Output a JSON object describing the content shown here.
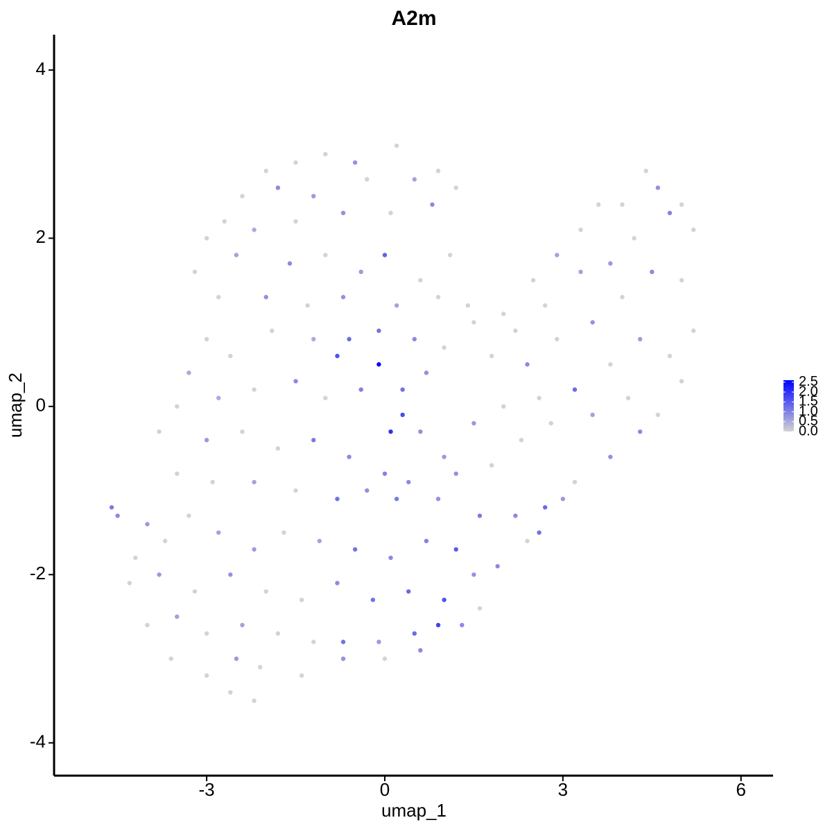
{
  "chart_data": {
    "type": "scatter",
    "title": "A2m",
    "x_label": "umap_1",
    "y_label": "umap_2",
    "xlim": [
      -5.57,
      6.54
    ],
    "ylim": [
      -4.39,
      4.42
    ],
    "xticks": [
      -3,
      0,
      3,
      6
    ],
    "yticks": [
      -4,
      -2,
      0,
      2,
      4
    ],
    "color_low": "#d3d3d3",
    "color_high": "#0000ff",
    "colorlim": [
      0,
      2.6
    ],
    "colorticks": [
      {
        "value": 0,
        "label": "0.0"
      },
      0.5,
      {
        "value": 1,
        "label": "1.0"
      },
      1.5,
      {
        "value": 2,
        "label": "2.0"
      },
      2.5
    ],
    "x": [
      -1.5,
      -1.0,
      -0.5,
      0.2,
      -2.0,
      -2.4,
      -1.8,
      -1.2,
      -0.3,
      0.5,
      0.9,
      1.2,
      -2.7,
      -2.2,
      -1.5,
      -0.7,
      0.1,
      0.8,
      -3.0,
      -2.5,
      -1.6,
      -1.0,
      -0.4,
      0.0,
      0.6,
      1.1,
      -3.2,
      -2.8,
      -2.0,
      -1.3,
      -0.7,
      0.2,
      0.9,
      1.4,
      -3.0,
      -3.3,
      -2.6,
      -1.9,
      -1.2,
      -0.6,
      -0.1,
      0.5,
      1.0,
      -0.8,
      -0.1,
      0.3,
      -0.4,
      0.7,
      -3.5,
      -2.8,
      -2.2,
      -1.5,
      -1.0,
      0.1,
      0.3,
      0.6,
      -3.8,
      -3.0,
      -2.4,
      -1.8,
      -1.2,
      -0.6,
      0.0,
      0.4,
      1.0,
      -3.5,
      -2.9,
      -2.2,
      -1.5,
      -0.8,
      -0.3,
      0.2,
      0.9,
      -4.6,
      -4.5,
      -4.2,
      -4.0,
      -3.7,
      -3.3,
      -2.8,
      -2.2,
      -1.7,
      -1.1,
      -0.5,
      0.1,
      0.7,
      -4.3,
      -3.8,
      -3.2,
      -2.6,
      -2.0,
      -1.4,
      -0.8,
      -0.2,
      0.4,
      1.0,
      -4.0,
      -3.5,
      -3.0,
      -2.4,
      -1.8,
      -1.2,
      -0.7,
      -0.1,
      0.5,
      0.9,
      -3.6,
      -3.0,
      -2.5,
      -2.1,
      -1.4,
      -0.7,
      0.0,
      0.6,
      -2.6,
      -2.2,
      1.5,
      2.0,
      2.5,
      2.9,
      3.3,
      3.6,
      4.0,
      4.4,
      4.6,
      5.0,
      5.2,
      4.8,
      4.2,
      3.8,
      3.3,
      2.7,
      2.2,
      1.8,
      2.4,
      2.9,
      3.5,
      4.0,
      4.5,
      5.0,
      5.2,
      4.8,
      4.3,
      3.8,
      3.2,
      2.6,
      2.0,
      1.5,
      1.8,
      2.3,
      2.8,
      3.5,
      4.1,
      4.6,
      5.0,
      4.3,
      3.8,
      3.2,
      2.7,
      2.2,
      1.6,
      1.2,
      2.4,
      1.9,
      1.5,
      1.2,
      3.0,
      2.6,
      1.6,
      1.3
    ],
    "y": [
      2.9,
      3.0,
      2.9,
      3.1,
      2.8,
      2.5,
      2.6,
      2.5,
      2.7,
      2.7,
      2.8,
      2.6,
      2.2,
      2.1,
      2.2,
      2.3,
      2.3,
      2.4,
      2.0,
      1.8,
      1.7,
      1.8,
      1.6,
      1.8,
      1.5,
      1.8,
      1.6,
      1.3,
      1.3,
      1.2,
      1.3,
      1.2,
      1.3,
      1.2,
      0.8,
      0.4,
      0.6,
      0.9,
      0.8,
      0.8,
      0.9,
      0.8,
      0.7,
      0.6,
      0.5,
      0.2,
      0.2,
      0.4,
      0.0,
      0.1,
      0.2,
      0.3,
      0.1,
      -0.3,
      -0.1,
      -0.3,
      -0.3,
      -0.4,
      -0.3,
      -0.5,
      -0.4,
      -0.6,
      -0.8,
      -0.9,
      -0.6,
      -0.8,
      -0.9,
      -0.9,
      -1.0,
      -1.1,
      -1.0,
      -1.1,
      -1.1,
      -1.2,
      -1.3,
      -1.8,
      -1.4,
      -1.6,
      -1.3,
      -1.5,
      -1.7,
      -1.5,
      -1.6,
      -1.7,
      -1.8,
      -1.6,
      -2.1,
      -2.0,
      -2.2,
      -2.0,
      -2.2,
      -2.3,
      -2.1,
      -2.3,
      -2.2,
      -2.3,
      -2.6,
      -2.5,
      -2.7,
      -2.6,
      -2.7,
      -2.8,
      -2.8,
      -2.8,
      -2.7,
      -2.6,
      -3.0,
      -3.2,
      -3.0,
      -3.1,
      -3.2,
      -3.0,
      -3.0,
      -2.9,
      -3.4,
      -3.5,
      1.0,
      1.1,
      1.5,
      1.8,
      2.1,
      2.4,
      2.4,
      2.8,
      2.6,
      2.4,
      2.1,
      2.3,
      2.0,
      1.7,
      1.6,
      1.2,
      0.9,
      0.6,
      0.5,
      0.8,
      1.0,
      1.3,
      1.6,
      1.5,
      0.9,
      0.6,
      0.8,
      0.5,
      0.2,
      0.1,
      0.0,
      -0.2,
      -0.7,
      -0.4,
      -0.2,
      -0.1,
      0.1,
      -0.1,
      0.3,
      -0.3,
      -0.6,
      -0.9,
      -1.2,
      -1.3,
      -1.3,
      -0.8,
      -1.6,
      -1.9,
      -2.0,
      -1.7,
      -1.1,
      -1.5,
      -2.4,
      -2.6
    ],
    "values": [
      0,
      0,
      0.8,
      0,
      0,
      0,
      0.9,
      0.7,
      0,
      0.6,
      0,
      0,
      0,
      0.5,
      0,
      0.8,
      0,
      0.9,
      0,
      0.6,
      0.9,
      0,
      0.7,
      1.4,
      0,
      0,
      0,
      0,
      0.8,
      0,
      0.8,
      0.6,
      0,
      0,
      0,
      0.5,
      0,
      0,
      0.5,
      1.3,
      1.2,
      0.9,
      0,
      1.6,
      2.5,
      1.2,
      1.0,
      0.8,
      0,
      0.5,
      0,
      0.9,
      0,
      2.0,
      1.7,
      0.8,
      0,
      0.7,
      0,
      0,
      1.1,
      0.9,
      1.0,
      0.9,
      0.7,
      0,
      0,
      0.6,
      0,
      1.2,
      0.8,
      1.1,
      0.8,
      1.1,
      0.9,
      0,
      0.7,
      0,
      0,
      0.6,
      0.7,
      0,
      0.6,
      1.2,
      0.9,
      1.0,
      0,
      0.7,
      0,
      0.8,
      0,
      0,
      0.9,
      1.2,
      1.3,
      1.6,
      0,
      0.6,
      0,
      0.6,
      0,
      0,
      1.2,
      0.7,
      1.3,
      1.8,
      0,
      0,
      0.7,
      0,
      0,
      0.8,
      0,
      0.9,
      0,
      0,
      0,
      0,
      0,
      0.6,
      0,
      0,
      0,
      0,
      0.8,
      0,
      0,
      1.0,
      0,
      0.7,
      0.6,
      0,
      0,
      0,
      0.9,
      0,
      0.8,
      0,
      0.9,
      0,
      0,
      0,
      0.7,
      0,
      1.3,
      0,
      0,
      0.7,
      0,
      0,
      0,
      0.6,
      0,
      0,
      0,
      0.9,
      0.8,
      0,
      1.3,
      0.9,
      1.1,
      0.8,
      0,
      0.9,
      0.8,
      1.5,
      0.7,
      1.2,
      0,
      0.9
    ]
  }
}
